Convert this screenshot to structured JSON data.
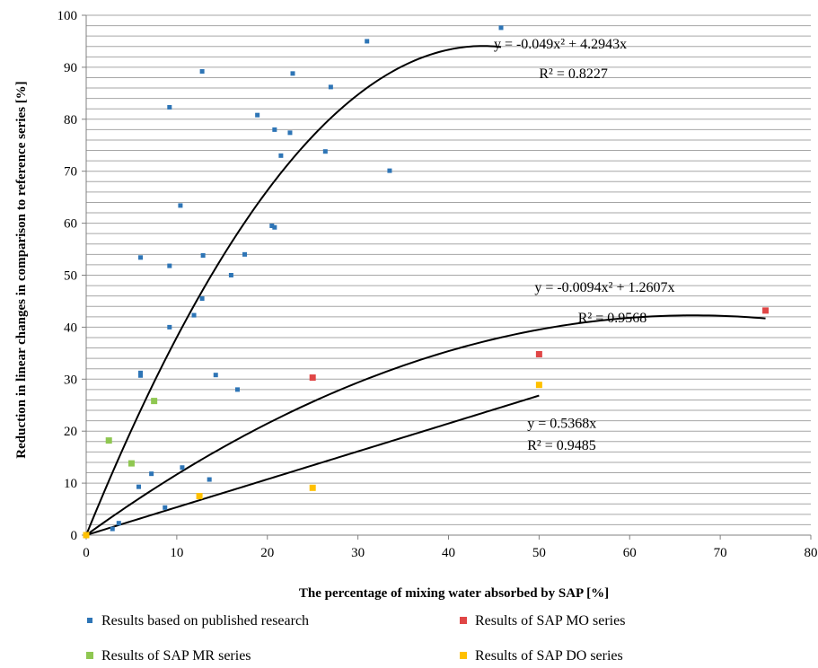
{
  "chart_data": {
    "type": "scatter",
    "title": "",
    "xlabel": "The percentage of mixing water absorbed by SAP [%]",
    "ylabel": "Reduction in linear changes in comparison to reference series [%]",
    "xlim": [
      0,
      80
    ],
    "ylim": [
      0,
      100
    ],
    "xticks": [
      0,
      10,
      20,
      30,
      40,
      50,
      60,
      70,
      80
    ],
    "yticks": [
      0,
      10,
      20,
      30,
      40,
      50,
      60,
      70,
      80,
      90,
      100
    ],
    "y_minor_step": 2,
    "grid": "horizontal",
    "legend_position": "bottom",
    "series": [
      {
        "name": "Results based on published research",
        "color": "#2e75b6",
        "points": [
          [
            0,
            0
          ],
          [
            2.9,
            1.2
          ],
          [
            3.6,
            2.3
          ],
          [
            5.8,
            9.3
          ],
          [
            7.2,
            11.8
          ],
          [
            8.7,
            5.3
          ],
          [
            10.6,
            13
          ],
          [
            13.6,
            10.7
          ],
          [
            6,
            30.7
          ],
          [
            6,
            31.2
          ],
          [
            9.2,
            40
          ],
          [
            11.9,
            42.3
          ],
          [
            12.8,
            45.5
          ],
          [
            12.9,
            53.8
          ],
          [
            6,
            53.4
          ],
          [
            9.2,
            51.8
          ],
          [
            16,
            50
          ],
          [
            17.5,
            54
          ],
          [
            14.3,
            30.8
          ],
          [
            16.7,
            28
          ],
          [
            10.4,
            63.4
          ],
          [
            20.5,
            59.5
          ],
          [
            20.8,
            59.2
          ],
          [
            9.2,
            82.3
          ],
          [
            12.8,
            89.2
          ],
          [
            18.9,
            80.8
          ],
          [
            20.8,
            78
          ],
          [
            22.5,
            77.4
          ],
          [
            21.5,
            73
          ],
          [
            22.8,
            88.8
          ],
          [
            26.4,
            73.8
          ],
          [
            27,
            86.2
          ],
          [
            31,
            95
          ],
          [
            33.5,
            70.1
          ],
          [
            45.8,
            97.6
          ]
        ]
      },
      {
        "name": "Results of SAP MO series",
        "color": "#e04646",
        "points": [
          [
            25,
            30.3
          ],
          [
            50,
            34.8
          ],
          [
            75,
            43.2
          ]
        ]
      },
      {
        "name": "Results of SAP MR series",
        "color": "#8fc751",
        "points": [
          [
            2.5,
            18.2
          ],
          [
            5,
            13.8
          ],
          [
            7.5,
            25.8
          ],
          [
            0,
            0
          ]
        ]
      },
      {
        "name": "Results of SAP DO series",
        "color": "#ffc000",
        "points": [
          [
            0,
            0
          ],
          [
            12.5,
            7.5
          ],
          [
            25,
            9.1
          ],
          [
            50,
            28.9
          ]
        ]
      }
    ],
    "trendlines": [
      {
        "a": -0.049,
        "b": 4.2943,
        "x_max": 45.8,
        "equation": "y = -0.049x² + 4.2943x",
        "r2": "R² = 0.8227",
        "eq_pos": [
          45,
          94.5
        ],
        "r2_pos": [
          50,
          88.8
        ]
      },
      {
        "a": -0.0094,
        "b": 1.2607,
        "x_max": 75,
        "equation": "y = -0.0094x² + 1.2607x",
        "r2": "R² = 0.9568",
        "eq_pos": [
          49.5,
          47.7
        ],
        "r2_pos": [
          54.3,
          41.8
        ]
      },
      {
        "a": 0,
        "b": 0.5368,
        "x_max": 50,
        "equation": "y = 0.5368x",
        "r2": "R² = 0.9485",
        "eq_pos": [
          48.7,
          21.5
        ],
        "r2_pos": [
          48.7,
          17.3
        ]
      }
    ]
  }
}
